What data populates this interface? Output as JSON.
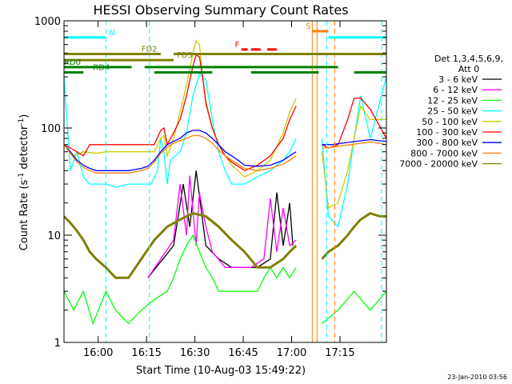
{
  "chart_data": {
    "type": "line",
    "title": "HESSI Observing Summary Count Rates",
    "xlabel": "Start Time (10-Aug-03 15:49:22)",
    "ylabel_main": "Count Rate (s",
    "ylabel_sup1": "-1",
    "ylabel_mid": " detector",
    "ylabel_sup2": "-1",
    "ylabel_end": ")",
    "footer": "23-Jan-2010 03:56",
    "x_unit": "minutes after 15:49:22",
    "xlim": [
      0,
      100
    ],
    "ylim": [
      1,
      1000
    ],
    "y_scale": "log",
    "x_ticks": [
      {
        "label": "16:00",
        "value": 10.6
      },
      {
        "label": "16:15",
        "value": 25.6
      },
      {
        "label": "16:30",
        "value": 40.6
      },
      {
        "label": "16:45",
        "value": 55.6
      },
      {
        "label": "17:00",
        "value": 70.6
      },
      {
        "label": "17:15",
        "value": 85.6
      }
    ],
    "y_ticks": [
      {
        "label": "1",
        "value": 1
      },
      {
        "label": "10",
        "value": 10
      },
      {
        "label": "100",
        "value": 100
      },
      {
        "label": "1000",
        "value": 1000
      }
    ],
    "legend": {
      "placement": "right",
      "header1": "Det 1,3,4,5,6,9,",
      "header2": "Att 0"
    },
    "series": [
      {
        "name": "3 - 6 keV",
        "color": "#000000",
        "x": [
          0,
          13,
          26,
          34,
          37,
          39,
          41,
          44,
          48,
          52,
          56,
          60,
          64,
          66,
          68,
          70,
          71,
          72,
          73,
          75,
          77,
          79,
          81,
          83,
          85,
          87,
          88,
          90,
          92,
          95,
          100
        ],
        "y": [
          null,
          null,
          4,
          8,
          30,
          12,
          40,
          8,
          6,
          5,
          5,
          5,
          6,
          25,
          8,
          20,
          8,
          null,
          null,
          null,
          null,
          null,
          null,
          null,
          null,
          null,
          null,
          null,
          null,
          null,
          null
        ]
      },
      {
        "name": "6 - 12 keV",
        "color": "#ff00ff",
        "x": [
          0,
          13,
          20,
          26,
          30,
          34,
          36,
          38,
          39,
          41,
          42,
          44,
          46,
          50,
          54,
          58,
          62,
          64,
          66,
          68,
          70,
          72,
          73,
          77,
          80,
          85,
          90,
          95,
          100
        ],
        "y": [
          null,
          null,
          null,
          4,
          6,
          9,
          30,
          10,
          36,
          8,
          25,
          12,
          7,
          5,
          5,
          5,
          6,
          22,
          7,
          18,
          8,
          9,
          null,
          null,
          null,
          null,
          null,
          null,
          null
        ]
      },
      {
        "name": "12 - 25 keV",
        "color": "#00ff00",
        "x": [
          0,
          3,
          6,
          9,
          13,
          16,
          20,
          24,
          28,
          32,
          34,
          36,
          38,
          40,
          42,
          44,
          46,
          48,
          52,
          56,
          60,
          62,
          64,
          66,
          68,
          70,
          72,
          73,
          75,
          80,
          85,
          90,
          95,
          100
        ],
        "y": [
          3,
          2,
          3,
          1.5,
          3,
          2,
          1.5,
          2,
          2.5,
          3,
          4,
          6,
          8,
          10,
          7,
          5,
          4,
          3,
          3,
          3,
          3,
          4,
          5,
          4,
          5,
          4,
          5,
          null,
          null,
          1.5,
          2,
          3,
          2,
          3
        ]
      },
      {
        "name": "25 - 50 keV",
        "color": "#00ffff",
        "x": [
          0,
          2,
          4,
          6,
          8,
          10,
          13,
          16,
          20,
          23,
          25,
          27,
          29,
          30,
          31,
          32,
          33,
          36,
          38,
          40,
          42,
          44,
          46,
          48,
          50,
          52,
          54,
          56,
          60,
          64,
          68,
          70,
          72,
          73,
          80,
          82,
          85,
          88,
          90,
          92,
          95,
          100
        ],
        "y": [
          300,
          40,
          60,
          35,
          30,
          30,
          30,
          28,
          30,
          30,
          30,
          30,
          40,
          80,
          60,
          30,
          50,
          60,
          90,
          200,
          320,
          280,
          120,
          60,
          40,
          30,
          30,
          30,
          35,
          40,
          50,
          60,
          80,
          null,
          80,
          15,
          12,
          30,
          80,
          200,
          80,
          300
        ]
      },
      {
        "name": "50 - 100 keV",
        "color": "#cccc00",
        "x": [
          0,
          3,
          6,
          10,
          13,
          16,
          20,
          24,
          28,
          30,
          31,
          32,
          34,
          36,
          38,
          40,
          41,
          42,
          43,
          44,
          46,
          48,
          50,
          52,
          54,
          56,
          60,
          64,
          68,
          70,
          72,
          73,
          80,
          82,
          85,
          88,
          90,
          92,
          95,
          100
        ],
        "y": [
          70,
          55,
          60,
          58,
          60,
          60,
          60,
          60,
          60,
          80,
          85,
          55,
          80,
          140,
          250,
          500,
          650,
          600,
          300,
          180,
          100,
          70,
          55,
          45,
          40,
          35,
          40,
          50,
          90,
          140,
          190,
          null,
          60,
          18,
          20,
          40,
          80,
          160,
          120,
          120
        ]
      },
      {
        "name": "100 - 300 keV",
        "color": "#ff0000",
        "x": [
          0,
          2,
          4,
          6,
          8,
          10,
          13,
          16,
          20,
          24,
          28,
          30,
          31,
          32,
          34,
          36,
          38,
          40,
          41,
          42,
          43,
          44,
          46,
          48,
          50,
          52,
          54,
          56,
          60,
          64,
          68,
          70,
          72,
          73,
          80,
          82,
          85,
          88,
          90,
          92,
          95,
          100
        ],
        "y": [
          70,
          65,
          60,
          55,
          70,
          70,
          70,
          70,
          70,
          70,
          70,
          95,
          100,
          70,
          90,
          120,
          200,
          380,
          480,
          460,
          300,
          170,
          100,
          70,
          55,
          48,
          44,
          40,
          45,
          55,
          80,
          120,
          160,
          null,
          70,
          65,
          70,
          120,
          190,
          190,
          150,
          80
        ]
      },
      {
        "name": "300 - 800 keV",
        "color": "#0000ff",
        "x": [
          0,
          2,
          4,
          6,
          8,
          10,
          13,
          16,
          20,
          24,
          26,
          28,
          30,
          32,
          34,
          36,
          38,
          40,
          42,
          44,
          46,
          48,
          50,
          52,
          54,
          56,
          60,
          64,
          68,
          70,
          72,
          73,
          80,
          83,
          86,
          89,
          92,
          95,
          98,
          100
        ],
        "y": [
          70,
          60,
          50,
          45,
          42,
          40,
          40,
          40,
          40,
          42,
          44,
          50,
          60,
          70,
          75,
          80,
          90,
          95,
          95,
          90,
          80,
          70,
          60,
          55,
          50,
          45,
          44,
          45,
          50,
          55,
          60,
          null,
          70,
          70,
          72,
          74,
          76,
          78,
          76,
          75
        ]
      },
      {
        "name": "800 - 7000 keV",
        "color": "#ff8000",
        "x": [
          0,
          2,
          4,
          6,
          8,
          10,
          13,
          16,
          20,
          24,
          26,
          28,
          30,
          32,
          34,
          36,
          38,
          40,
          42,
          44,
          46,
          48,
          50,
          52,
          54,
          56,
          60,
          64,
          68,
          70,
          72,
          73,
          80,
          83,
          86,
          89,
          92,
          95,
          98,
          100
        ],
        "y": [
          70,
          58,
          48,
          43,
          40,
          38,
          38,
          38,
          38,
          40,
          42,
          48,
          58,
          66,
          72,
          76,
          80,
          85,
          85,
          80,
          72,
          62,
          55,
          50,
          46,
          42,
          40,
          42,
          46,
          50,
          55,
          null,
          65,
          66,
          68,
          70,
          72,
          74,
          72,
          70
        ]
      },
      {
        "name": "7000 - 20000 keV",
        "color": "#808000",
        "x": [
          0,
          2,
          4,
          6,
          8,
          10,
          13,
          16,
          20,
          24,
          28,
          32,
          36,
          40,
          44,
          48,
          52,
          56,
          60,
          64,
          68,
          70,
          72,
          73,
          80,
          82,
          85,
          88,
          90,
          92,
          95,
          98,
          100
        ],
        "y": [
          15,
          13,
          11,
          9,
          7,
          6,
          5,
          4,
          4,
          6,
          9,
          12,
          14,
          16,
          15,
          12,
          9,
          7,
          5,
          5,
          6,
          7,
          8,
          null,
          6,
          7,
          8,
          10,
          12,
          14,
          16,
          15,
          15
        ]
      }
    ],
    "flag_bars": [
      {
        "label": "N",
        "color": "#00ffff",
        "x_start": 0,
        "x_end": 13,
        "y": 700,
        "label_x": 14
      },
      {
        "label": "",
        "color": "#00ffff",
        "x_start": 82,
        "x_end": 100,
        "y": 700,
        "label_x": null
      },
      {
        "label": "S",
        "color": "#ff8000",
        "x_start": 77,
        "x_end": 82,
        "y": 800,
        "label_x": 75
      },
      {
        "label": "F",
        "color": "#ff0000",
        "x_start": 55,
        "x_end": 57,
        "y": 540,
        "label_x": 53
      },
      {
        "label": "",
        "color": "#ff0000",
        "x_start": 58,
        "x_end": 61,
        "y": 540,
        "label_x": null
      },
      {
        "label": "",
        "color": "#ff0000",
        "x_start": 63,
        "x_end": 66,
        "y": 540,
        "label_x": null
      },
      {
        "label": "FD2",
        "color": "#808000",
        "x_start": 0,
        "x_end": 30,
        "y": 490,
        "label_x": 24
      },
      {
        "label": "",
        "color": "#808000",
        "x_start": 34,
        "x_end": 100,
        "y": 490,
        "label_x": null
      },
      {
        "label": "FD3",
        "color": "#808000",
        "x_start": 0,
        "x_end": 34,
        "y": 430,
        "label_x": 35
      },
      {
        "label": "RD0",
        "color": "#008000",
        "x_start": 0,
        "x_end": 21,
        "y": 370,
        "label_x": 0
      },
      {
        "label": "",
        "color": "#008000",
        "x_start": 25,
        "x_end": 85,
        "y": 370,
        "label_x": null
      },
      {
        "label": "RD4",
        "color": "#008000",
        "x_start": 0,
        "x_end": 6,
        "y": 330,
        "label_x": 9
      },
      {
        "label": "",
        "color": "#008000",
        "x_start": 28,
        "x_end": 46,
        "y": 330,
        "label_x": null
      },
      {
        "label": "",
        "color": "#008000",
        "x_start": 58,
        "x_end": 79,
        "y": 330,
        "label_x": null
      },
      {
        "label": "",
        "color": "#008000",
        "x_start": 90,
        "x_end": 100,
        "y": 330,
        "label_x": null
      }
    ],
    "vlines": [
      {
        "x": 13,
        "color": "#00ffff",
        "style": "dashed"
      },
      {
        "x": 26.5,
        "color": "#00ffff",
        "style": "dashed"
      },
      {
        "x": 81.5,
        "color": "#00ffff",
        "style": "dashed"
      },
      {
        "x": 98.5,
        "color": "#00ffff",
        "style": "dashed"
      },
      {
        "x": 77,
        "color": "#ff8000",
        "style": "solid"
      },
      {
        "x": 78.5,
        "color": "#ff8000",
        "style": "solid"
      },
      {
        "x": 84,
        "color": "#ff8000",
        "style": "dashed"
      }
    ]
  }
}
